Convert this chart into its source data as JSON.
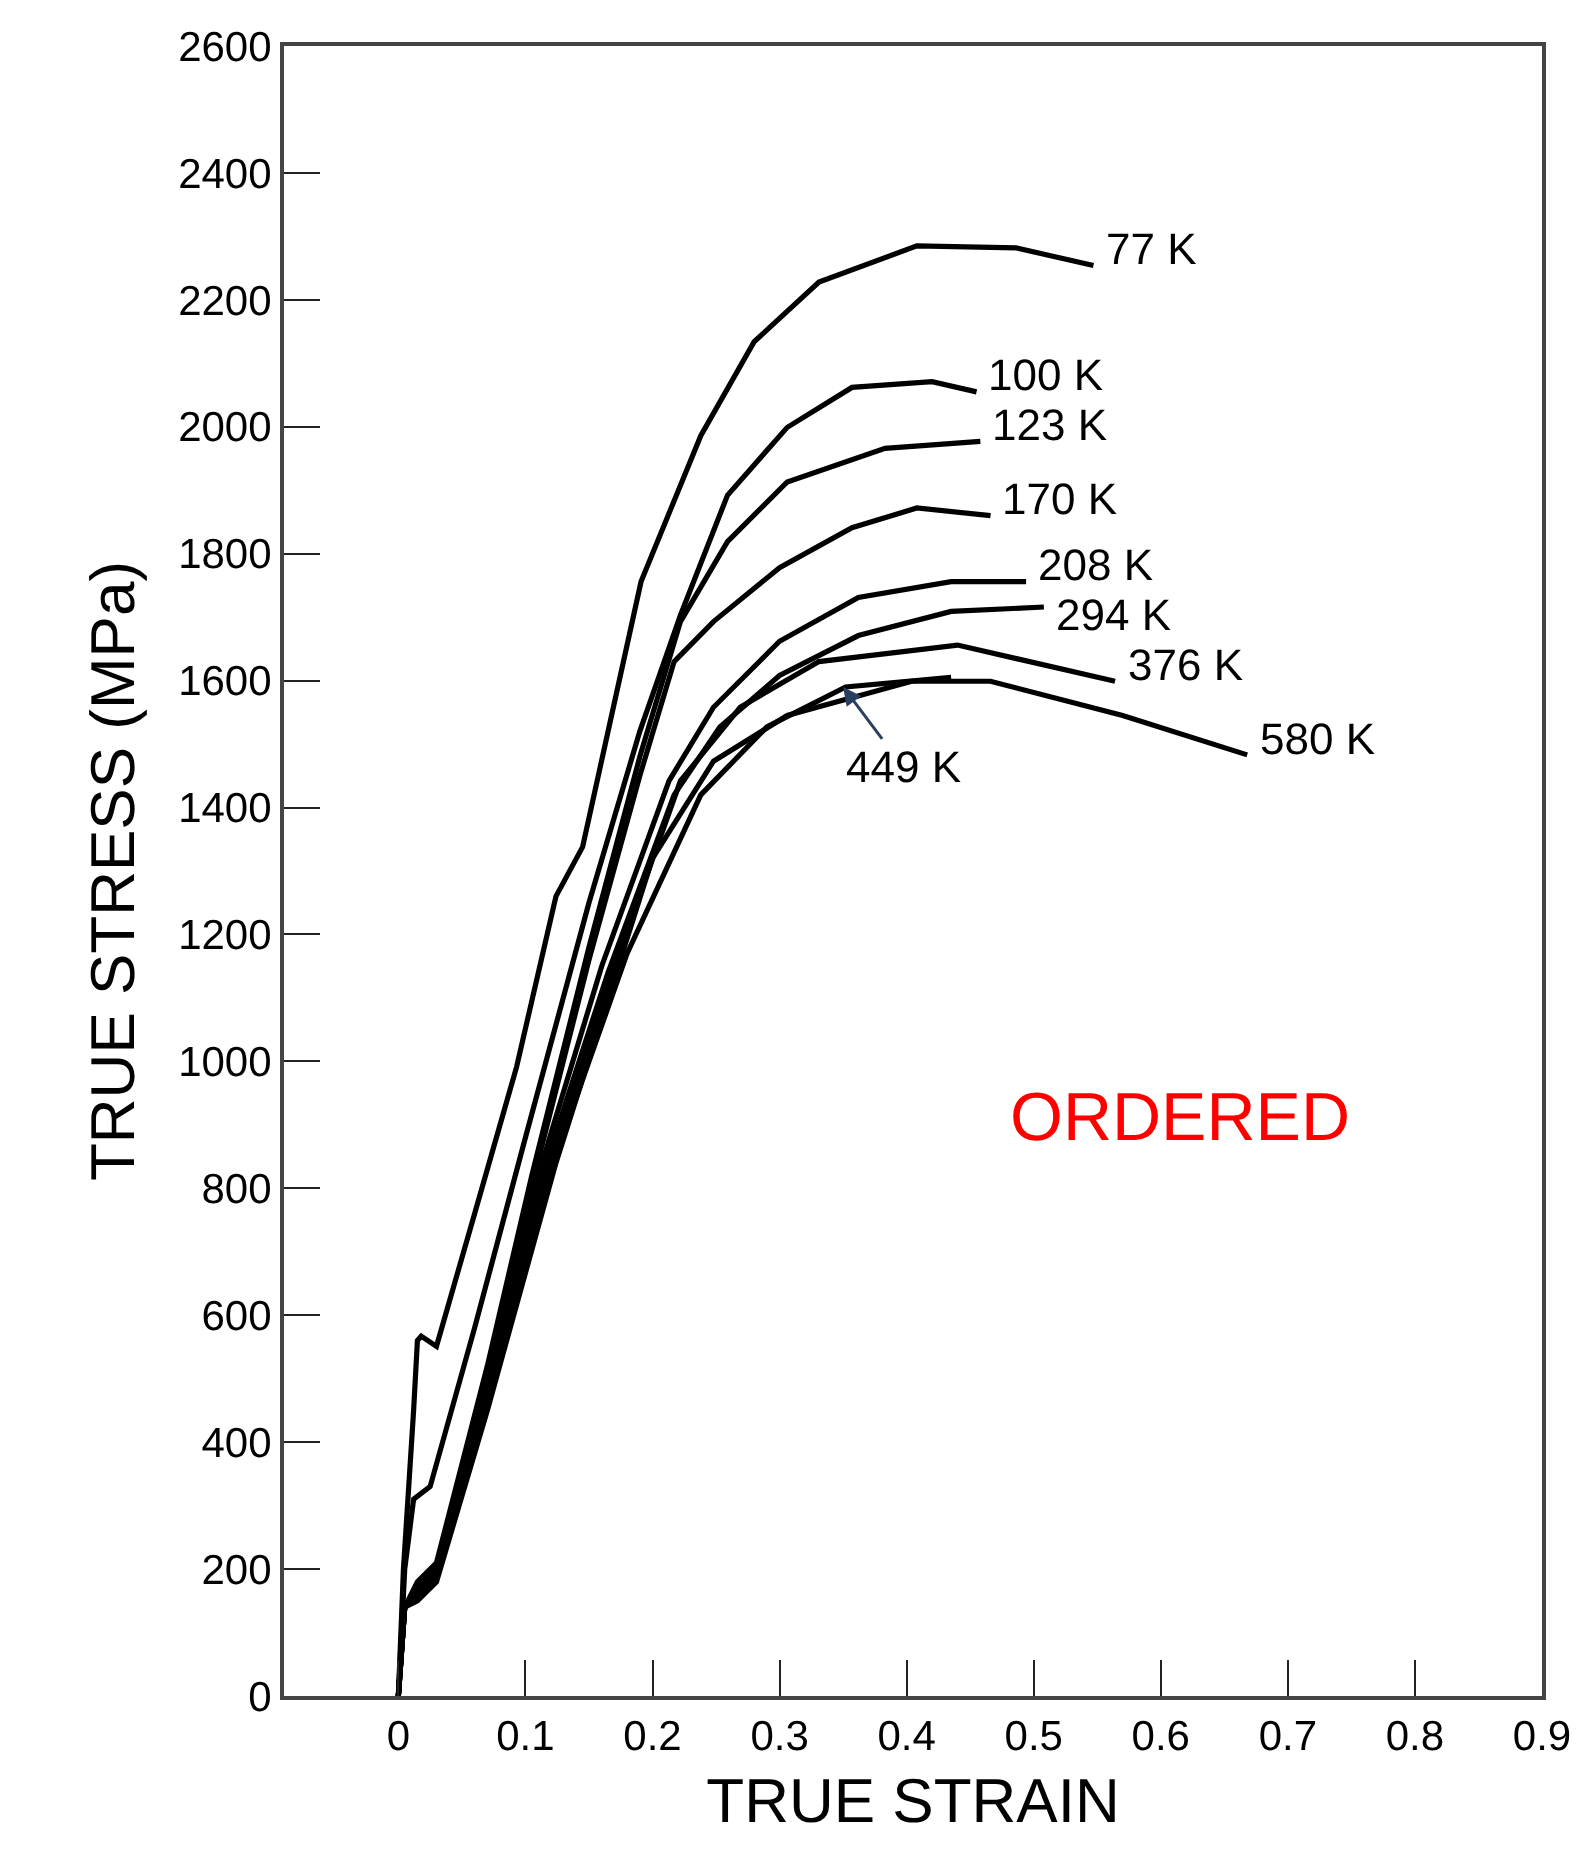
{
  "chart_data": {
    "type": "line",
    "xlabel": "TRUE STRAIN",
    "ylabel": "TRUE STRESS (MPa)",
    "xlim": [
      -0.09,
      0.9
    ],
    "xticks": [
      0,
      0.1,
      0.2,
      0.3,
      0.4,
      0.5,
      0.6,
      0.7,
      0.8,
      0.9
    ],
    "ylim": [
      0,
      2600
    ],
    "yticks": [
      0,
      200,
      400,
      600,
      800,
      1000,
      1200,
      1400,
      1600,
      1800,
      2000,
      2200,
      2400,
      2600
    ],
    "legend": false,
    "marker": "none",
    "line_style": "solid",
    "annotations": [
      "ORDERED",
      {
        "text": "449 K",
        "x": 0.35,
        "y": 1590
      }
    ],
    "series": [
      {
        "name": "77 K",
        "color": "#000000",
        "x": [
          0,
          0.004,
          0.012,
          0.015,
          0.018,
          0.03,
          0.06,
          0.093,
          0.124,
          0.145,
          0.191,
          0.238,
          0.28,
          0.331,
          0.408,
          0.486,
          0.547
        ],
        "values": [
          0,
          200,
          450,
          560,
          567,
          551,
          760,
          991,
          1260,
          1338,
          1756,
          1986,
          2134,
          2228,
          2285,
          2282,
          2254
        ]
      },
      {
        "name": "100 K",
        "color": "#000000",
        "x": [
          0,
          0.005,
          0.012,
          0.025,
          0.06,
          0.1,
          0.15,
          0.19,
          0.222,
          0.259,
          0.306,
          0.357,
          0.42,
          0.455
        ],
        "values": [
          0,
          200,
          310,
          330,
          580,
          880,
          1250,
          1520,
          1703,
          1892,
          1999,
          2062,
          2071,
          2055
        ]
      },
      {
        "name": "123 K",
        "color": "#000000",
        "x": [
          0,
          0.005,
          0.015,
          0.03,
          0.07,
          0.105,
          0.15,
          0.19,
          0.222,
          0.259,
          0.306,
          0.383,
          0.458
        ],
        "values": [
          0,
          140,
          180,
          210,
          520,
          820,
          1180,
          1480,
          1693,
          1819,
          1913,
          1966,
          1977
        ]
      },
      {
        "name": "170 K",
        "color": "#000000",
        "x": [
          0,
          0.005,
          0.015,
          0.03,
          0.07,
          0.107,
          0.15,
          0.19,
          0.217,
          0.248,
          0.3,
          0.357,
          0.408,
          0.466
        ],
        "values": [
          0,
          140,
          175,
          205,
          510,
          820,
          1160,
          1450,
          1630,
          1693,
          1778,
          1841,
          1872,
          1860
        ]
      },
      {
        "name": "208 K",
        "color": "#000000",
        "x": [
          0,
          0.005,
          0.015,
          0.03,
          0.07,
          0.11,
          0.16,
          0.213,
          0.248,
          0.3,
          0.362,
          0.435,
          0.494
        ],
        "values": [
          0,
          140,
          170,
          200,
          490,
          820,
          1150,
          1442,
          1558,
          1662,
          1731,
          1756,
          1756
        ]
      },
      {
        "name": "294 K",
        "color": "#000000",
        "x": [
          0,
          0.005,
          0.015,
          0.03,
          0.07,
          0.113,
          0.165,
          0.217,
          0.253,
          0.3,
          0.362,
          0.435,
          0.508
        ],
        "values": [
          0,
          140,
          165,
          195,
          480,
          820,
          1140,
          1420,
          1527,
          1608,
          1671,
          1709,
          1716
        ]
      },
      {
        "name": "376 K",
        "color": "#000000",
        "x": [
          0,
          0.005,
          0.015,
          0.03,
          0.07,
          0.116,
          0.17,
          0.222,
          0.269,
          0.331,
          0.44,
          0.564
        ],
        "values": [
          0,
          140,
          160,
          190,
          470,
          820,
          1150,
          1442,
          1558,
          1630,
          1656,
          1599
        ]
      },
      {
        "color": "#000000",
        "x": [
          0,
          0.005,
          0.015,
          0.03,
          0.07,
          0.12,
          0.18,
          0.238,
          0.29,
          0.352,
          0.435
        ],
        "values": [
          0,
          140,
          155,
          185,
          460,
          830,
          1170,
          1420,
          1527,
          1590,
          1605
        ]
      },
      {
        "name": "580 K",
        "color": "#000000",
        "x": [
          0,
          0.005,
          0.015,
          0.03,
          0.07,
          0.124,
          0.2,
          0.248,
          0.306,
          0.404,
          0.466,
          0.57,
          0.668
        ],
        "values": [
          0,
          140,
          150,
          180,
          450,
          840,
          1320,
          1473,
          1545,
          1599,
          1599,
          1545,
          1483
        ]
      }
    ]
  }
}
